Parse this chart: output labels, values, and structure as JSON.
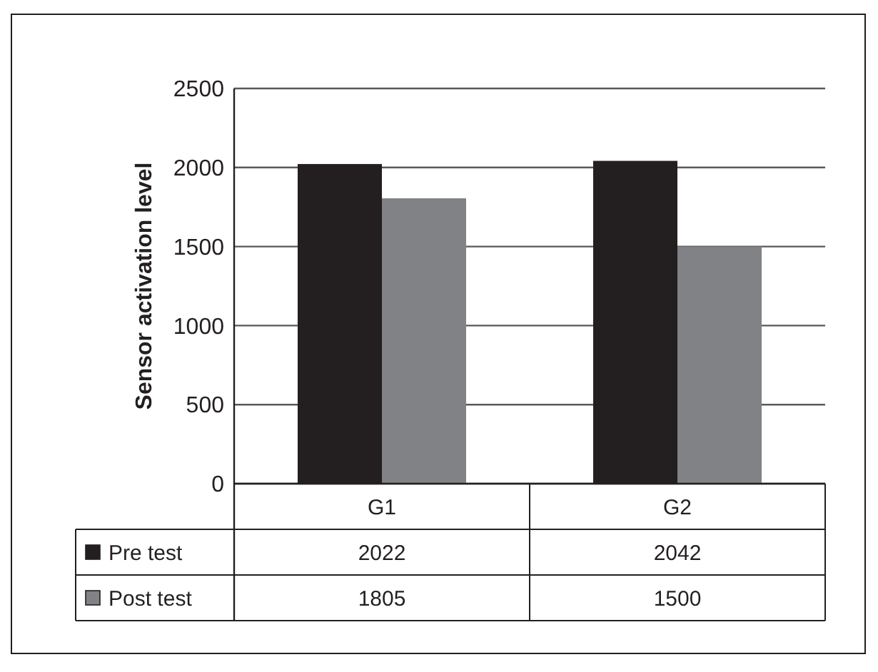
{
  "chart_data": {
    "type": "bar",
    "ylabel": "Sensor activation level",
    "categories": [
      "G1",
      "G2"
    ],
    "series": [
      {
        "name": "Pre test",
        "color": "#231f20",
        "values": [
          2022,
          2042
        ]
      },
      {
        "name": "Post test",
        "color": "#808285",
        "values": [
          1805,
          1500
        ]
      }
    ],
    "ylim": [
      0,
      2500
    ],
    "yticks": [
      0,
      500,
      1000,
      1500,
      2000,
      2500
    ],
    "grid": "y",
    "legend": "bottom",
    "data_labels": true
  }
}
